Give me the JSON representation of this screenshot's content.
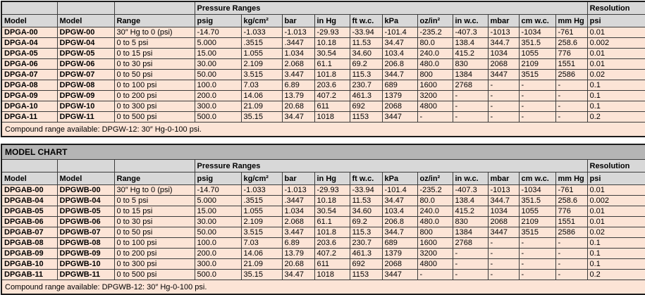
{
  "labels": {
    "pressure_ranges": "Pressure Ranges",
    "resolution": "Resolution",
    "model_chart": "MODEL CHART"
  },
  "columns": [
    "Model",
    "Model",
    "Range",
    "psig",
    "kg/cm²",
    "bar",
    "in Hg",
    "ft w.c.",
    "kPa",
    "oz/in²",
    "in w.c.",
    "mbar",
    "cm w.c.",
    "mm Hg",
    "psi"
  ],
  "colors": {
    "header_bg": "#d8d8d8",
    "band_bg": "#b5b5b5",
    "row_bg": "#fce4d6",
    "border": "#3c3c3c"
  },
  "table1": {
    "rows": [
      {
        "model_a": "DPGA-00",
        "model_b": "DPGW-00",
        "range": "30″ Hg to 0 (psi)",
        "values": [
          "-14.70",
          "-1.033",
          "-1.013",
          "-29.93",
          "-33.94",
          "-101.4",
          "-235.2",
          "-407.3",
          "-1013",
          "-1034",
          "-761",
          "0.01"
        ]
      },
      {
        "model_a": "DPGA-04",
        "model_b": "DPGW-04",
        "range": "0 to 5 psi",
        "values": [
          "5.000",
          ".3515",
          ".3447",
          "10.18",
          "11.53",
          "34.47",
          "80.0",
          "138.4",
          "344.7",
          "351.5",
          "258.6",
          "0.002"
        ]
      },
      {
        "model_a": "DPGA-05",
        "model_b": "DPGW-05",
        "range": "0 to 15 psi",
        "values": [
          "15.00",
          "1.055",
          "1.034",
          "30.54",
          "34.60",
          "103.4",
          "240.0",
          "415.2",
          "1034",
          "1055",
          "776",
          "0.01"
        ]
      },
      {
        "model_a": "DPGA-06",
        "model_b": "DPGW-06",
        "range": "0 to 30 psi",
        "values": [
          "30.00",
          "2.109",
          "2.068",
          "61.1",
          "69.2",
          "206.8",
          "480.0",
          "830",
          "2068",
          "2109",
          "1551",
          "0.01"
        ]
      },
      {
        "model_a": "DPGA-07",
        "model_b": "DPGW-07",
        "range": "0 to 50 psi",
        "values": [
          "50.00",
          "3.515",
          "3.447",
          "101.8",
          "115.3",
          "344.7",
          "800",
          "1384",
          "3447",
          "3515",
          "2586",
          "0.02"
        ]
      },
      {
        "model_a": "DPGA-08",
        "model_b": "DPGW-08",
        "range": "0 to 100 psi",
        "values": [
          "100.0",
          "7.03",
          "6.89",
          "203.6",
          "230.7",
          "689",
          "1600",
          "2768",
          "-",
          "-",
          "-",
          "0.1"
        ]
      },
      {
        "model_a": "DPGA-09",
        "model_b": "DPGW-09",
        "range": "0 to 200 psi",
        "values": [
          "200.0",
          "14.06",
          "13.79",
          "407.2",
          "461.3",
          "1379",
          "3200",
          "-",
          "-",
          "-",
          "-",
          "0.1"
        ]
      },
      {
        "model_a": "DPGA-10",
        "model_b": "DPGW-10",
        "range": "0 to 300 psi",
        "values": [
          "300.0",
          "21.09",
          "20.68",
          "611",
          "692",
          "2068",
          "4800",
          "-",
          "-",
          "-",
          "-",
          "0.1"
        ]
      },
      {
        "model_a": "DPGA-11",
        "model_b": "DPGW-11",
        "range": "0 to 500 psi",
        "values": [
          "500.0",
          "35.15",
          "34.47",
          "1018",
          "1153",
          "3447",
          "-",
          "-",
          "-",
          "-",
          "-",
          "0.2"
        ]
      }
    ],
    "footer": "Compound range available: DPGW-12: 30″ Hg-0-100 psi."
  },
  "table2": {
    "rows": [
      {
        "model_a": "DPGAB-00",
        "model_b": "DPGWB-00",
        "range": "30″ Hg to 0 (psi)",
        "values": [
          "-14.70",
          "-1.033",
          "-1.013",
          "-29.93",
          "-33.94",
          "-101.4",
          "-235.2",
          "-407.3",
          "-1013",
          "-1034",
          "-761",
          "0.01"
        ]
      },
      {
        "model_a": "DPGAB-04",
        "model_b": "DPGWB-04",
        "range": "0 to 5 psi",
        "values": [
          "5.000",
          ".3515",
          ".3447",
          "10.18",
          "11.53",
          "34.47",
          "80.0",
          "138.4",
          "344.7",
          "351.5",
          "258.6",
          "0.002"
        ]
      },
      {
        "model_a": "DPGAB-05",
        "model_b": "DPGWB-05",
        "range": "0 to 15 psi",
        "values": [
          "15.00",
          "1.055",
          "1.034",
          "30.54",
          "34.60",
          "103.4",
          "240.0",
          "415.2",
          "1034",
          "1055",
          "776",
          "0.01"
        ]
      },
      {
        "model_a": "DPGAB-06",
        "model_b": "DPGWB-06",
        "range": "0 to 30 psi",
        "values": [
          "30.00",
          "2.109",
          "2.068",
          "61.1",
          "69.2",
          "206.8",
          "480.0",
          "830",
          "2068",
          "2109",
          "1551",
          "0.01"
        ]
      },
      {
        "model_a": "DPGAB-07",
        "model_b": "DPGWB-07",
        "range": "0 to 50 psi",
        "values": [
          "50.00",
          "3.515",
          "3.447",
          "101.8",
          "115.3",
          "344.7",
          "800",
          "1384",
          "3447",
          "3515",
          "2586",
          "0.02"
        ]
      },
      {
        "model_a": "DPGAB-08",
        "model_b": "DPGWB-08",
        "range": "0 to 100 psi",
        "values": [
          "100.0",
          "7.03",
          "6.89",
          "203.6",
          "230.7",
          "689",
          "1600",
          "2768",
          "-",
          "-",
          "-",
          "0.1"
        ]
      },
      {
        "model_a": "DPGAB-09",
        "model_b": "DPGWB-09",
        "range": "0 to 200 psi",
        "values": [
          "200.0",
          "14.06",
          "13.79",
          "407.2",
          "461.3",
          "1379",
          "3200",
          "-",
          "-",
          "-",
          "-",
          "0.1"
        ]
      },
      {
        "model_a": "DPGAB-10",
        "model_b": "DPGWB-10",
        "range": "0 to 300 psi",
        "values": [
          "300.0",
          "21.09",
          "20.68",
          "611",
          "692",
          "2068",
          "4800",
          "-",
          "-",
          "-",
          "-",
          "0.1"
        ]
      },
      {
        "model_a": "DPGAB-11",
        "model_b": "DPGWB-11",
        "range": "0 to 500 psi",
        "values": [
          "500.0",
          "35.15",
          "34.47",
          "1018",
          "1153",
          "3447",
          "-",
          "-",
          "-",
          "-",
          "-",
          "0.2"
        ]
      }
    ],
    "footer": "Compound range available: DPGWB-12: 30″ Hg-0-100 psi."
  }
}
